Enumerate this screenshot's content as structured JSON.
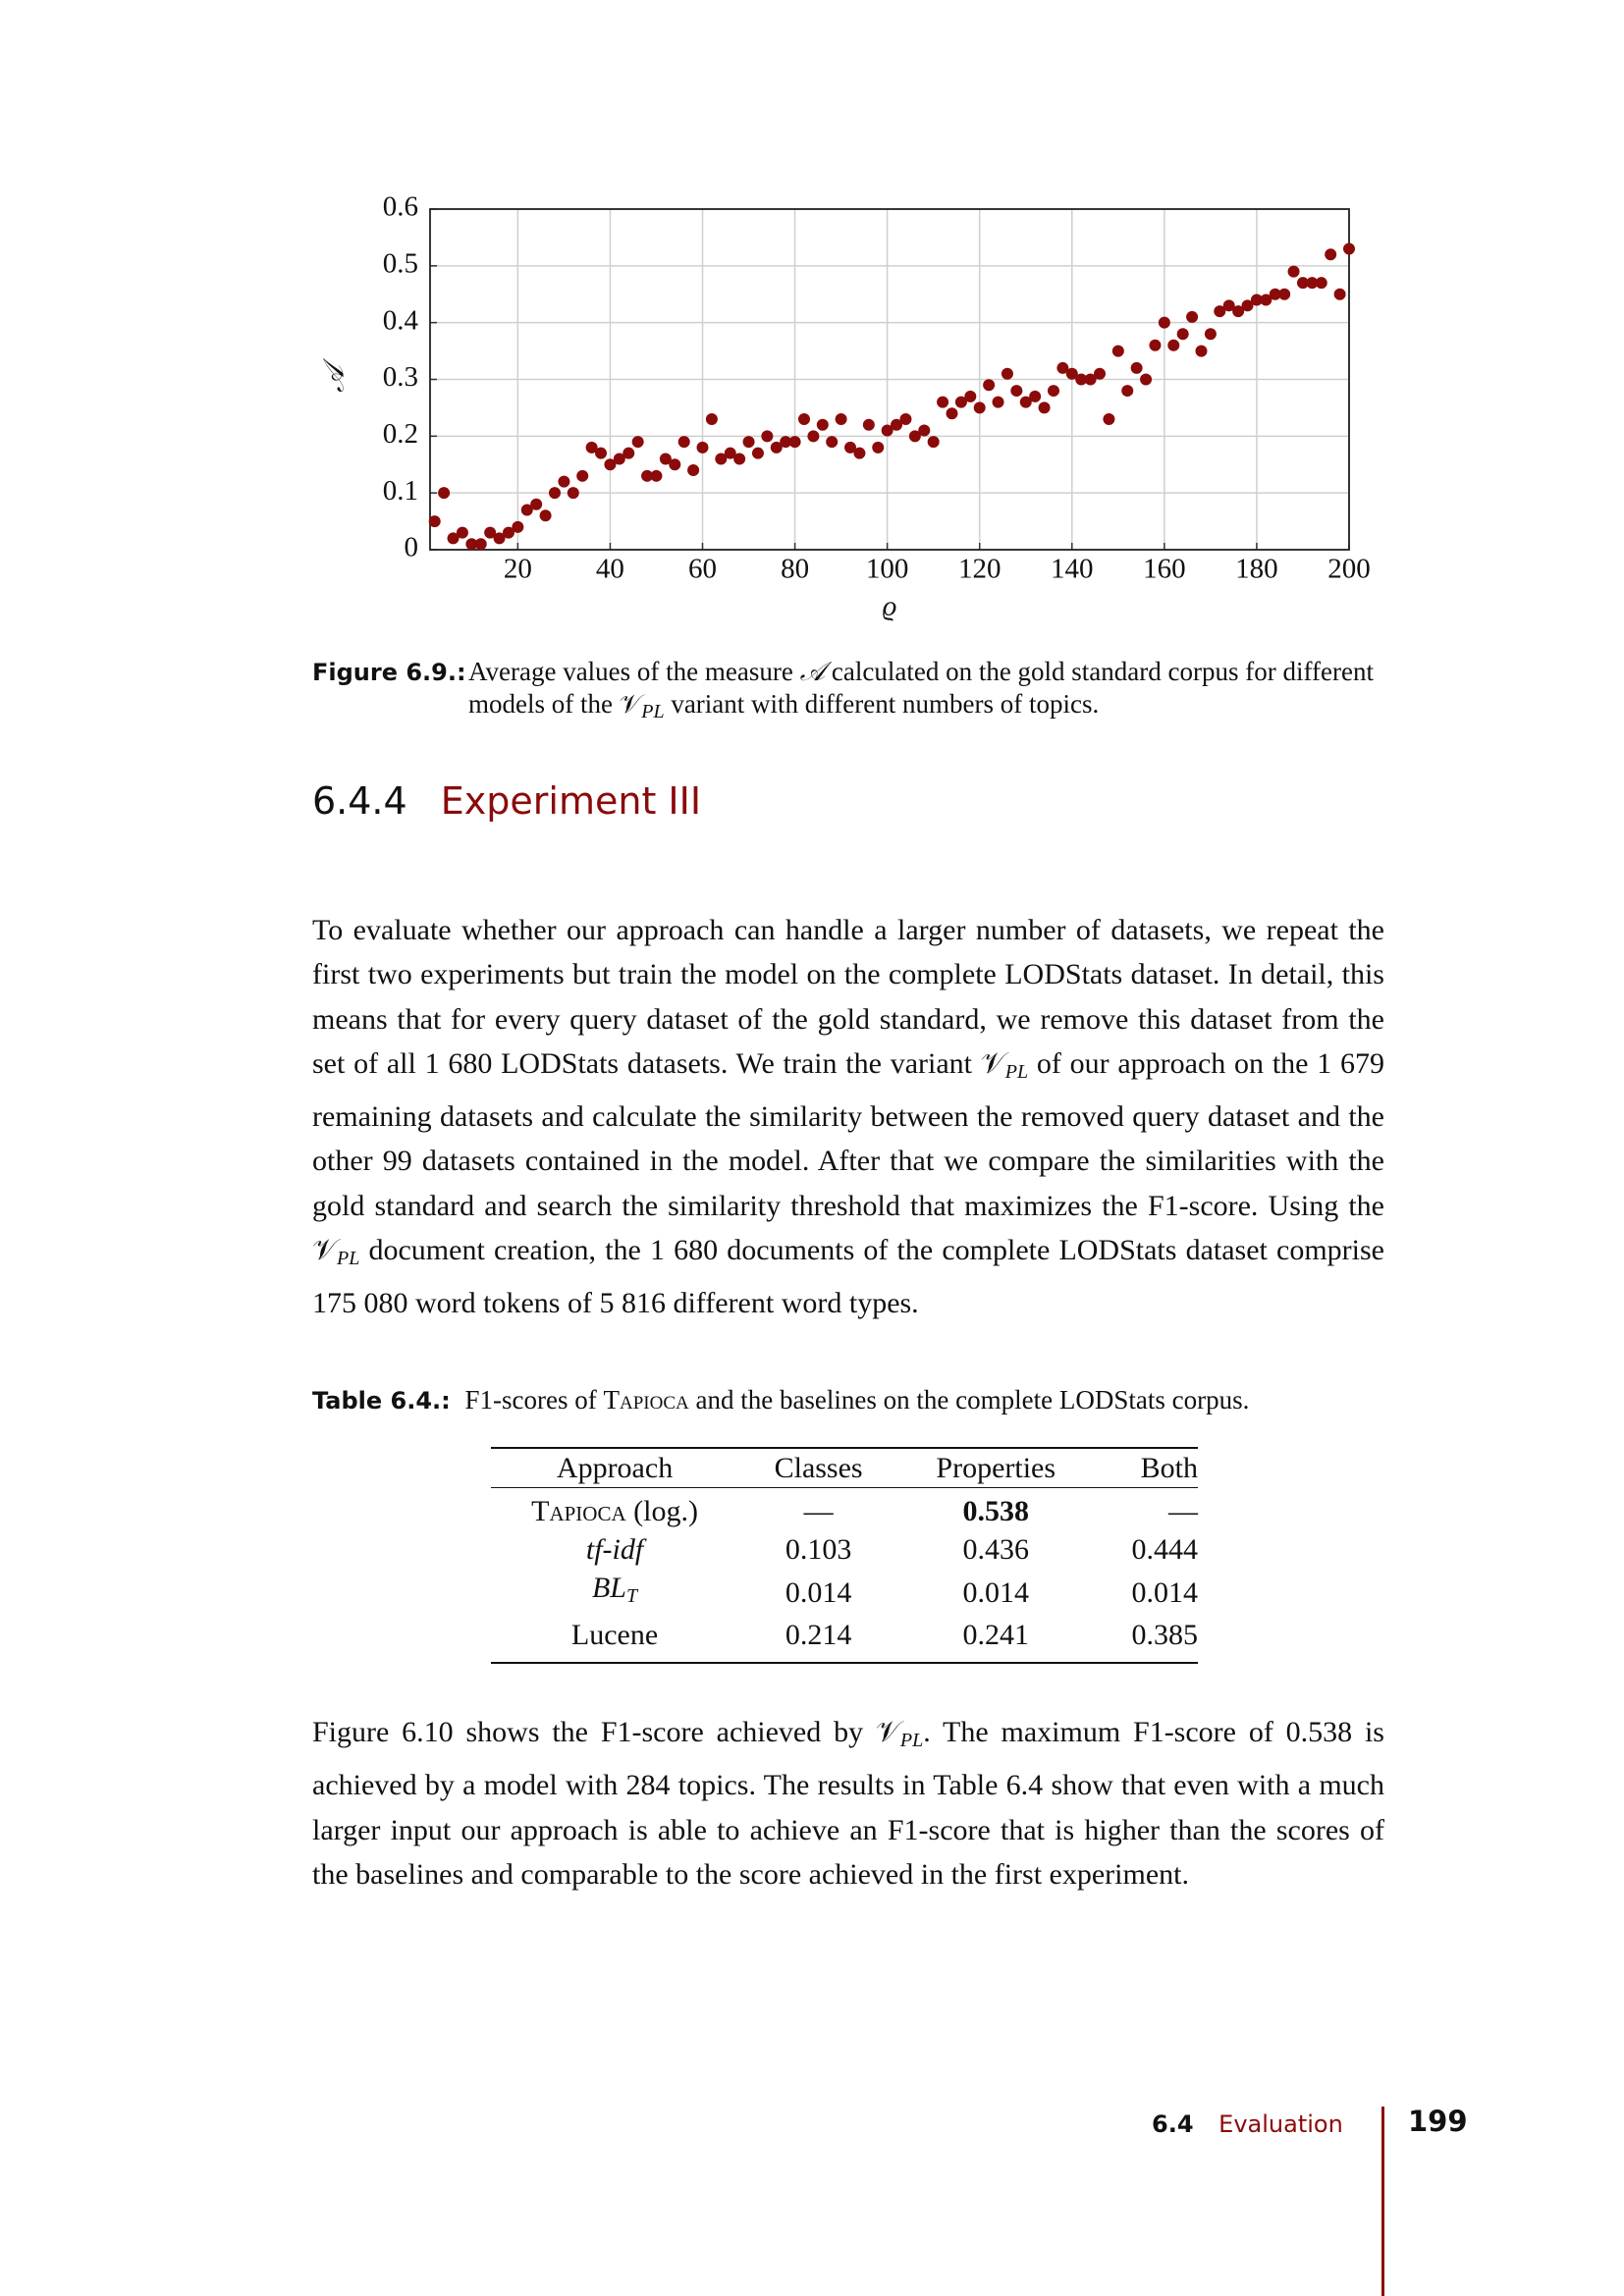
{
  "chart_data": {
    "type": "scatter",
    "xlabel": "ϱ",
    "ylabel": "𝒜",
    "x": [
      2,
      4,
      6,
      8,
      10,
      12,
      14,
      16,
      18,
      20,
      22,
      24,
      26,
      28,
      30,
      32,
      34,
      36,
      38,
      40,
      42,
      44,
      46,
      48,
      50,
      52,
      54,
      56,
      58,
      60,
      62,
      64,
      66,
      68,
      70,
      72,
      74,
      76,
      78,
      80,
      82,
      84,
      86,
      88,
      90,
      92,
      94,
      96,
      98,
      100,
      102,
      104,
      106,
      108,
      110,
      112,
      114,
      116,
      118,
      120,
      122,
      124,
      126,
      128,
      130,
      132,
      134,
      136,
      138,
      140,
      142,
      144,
      146,
      148,
      150,
      152,
      154,
      156,
      158,
      160,
      162,
      164,
      166,
      168,
      170,
      172,
      174,
      176,
      178,
      180,
      182,
      184,
      186,
      188,
      190,
      192,
      194,
      196,
      198,
      200
    ],
    "values": [
      0.05,
      0.1,
      0.02,
      0.03,
      0.01,
      0.01,
      0.03,
      0.02,
      0.03,
      0.04,
      0.07,
      0.08,
      0.06,
      0.1,
      0.12,
      0.1,
      0.13,
      0.18,
      0.17,
      0.15,
      0.16,
      0.17,
      0.19,
      0.13,
      0.13,
      0.16,
      0.15,
      0.19,
      0.14,
      0.18,
      0.23,
      0.16,
      0.17,
      0.16,
      0.19,
      0.17,
      0.2,
      0.18,
      0.19,
      0.19,
      0.23,
      0.2,
      0.22,
      0.19,
      0.23,
      0.18,
      0.17,
      0.22,
      0.18,
      0.21,
      0.22,
      0.23,
      0.2,
      0.21,
      0.19,
      0.26,
      0.24,
      0.26,
      0.27,
      0.25,
      0.29,
      0.26,
      0.31,
      0.28,
      0.26,
      0.27,
      0.25,
      0.28,
      0.32,
      0.31,
      0.3,
      0.3,
      0.31,
      0.23,
      0.35,
      0.28,
      0.32,
      0.3,
      0.36,
      0.4,
      0.36,
      0.38,
      0.41,
      0.35,
      0.38,
      0.42,
      0.43,
      0.42,
      0.43,
      0.44,
      0.44,
      0.45,
      0.45,
      0.49,
      0.47,
      0.47,
      0.47,
      0.52,
      0.45,
      0.53
    ],
    "color": "#8b0a0a",
    "xlim": [
      1,
      200
    ],
    "ylim": [
      0,
      0.6
    ],
    "xticks": [
      20,
      40,
      60,
      80,
      100,
      120,
      140,
      160,
      180,
      200
    ],
    "yticks": [
      0,
      0.1,
      0.2,
      0.3,
      0.4,
      0.5,
      0.6
    ],
    "grid": true
  },
  "figure_caption": {
    "label": "Figure 6.9.:",
    "segments": [
      "Average values of the measure ",
      "𝒜",
      " calculated on the gold standard corpus for different models of the ",
      "𝒱",
      "PL",
      " variant with different numbers of topics."
    ]
  },
  "section": {
    "number": "6.4.4",
    "title": "Experiment III"
  },
  "paragraphs": [
    [
      "To evaluate whether our approach can handle a larger number of datasets, we repeat the first two experiments but train the model on the complete LODStats dataset. In detail, this means that for every query dataset of the gold standard, we remove this dataset from the set of all 1 680 LODStats datasets. We train the variant ",
      "𝒱",
      "PL",
      " of our approach on the 1 679 remaining datasets and calculate the similarity between the removed query dataset and the other 99 datasets contained in the model. After that we compare the similarities with the gold standard and search the similarity threshold that maximizes the F1-score. Using the ",
      "𝒱",
      "PL",
      " document creation, the 1 680 documents of the complete LODStats dataset comprise 175 080 word tokens of 5 816 different word types."
    ],
    [
      "Figure 6.10 shows the F1-score achieved by ",
      "𝒱",
      "PL",
      ". The maximum F1-score of 0.538 is achieved by a model with 284 topics. The results in Table 6.4 show that even with a much larger input our approach is able to achieve an F1-score that is higher than the scores of the baselines and comparable to the score achieved in the first experiment."
    ]
  ],
  "table_caption": {
    "label": "Table 6.4.:",
    "segments": [
      "F1-scores of ",
      "Tapioca",
      " and the baselines on the complete LODStats corpus."
    ]
  },
  "table": {
    "header": [
      "Approach",
      "Classes",
      "Properties",
      "Both"
    ],
    "rows": [
      [
        [
          "Tapioca",
          " (log.)"
        ],
        "—",
        "0.538",
        "—"
      ],
      [
        "tf-idf",
        "0.103",
        "0.436",
        "0.444"
      ],
      [
        [
          "BL",
          "T"
        ],
        "0.014",
        "0.014",
        "0.014"
      ],
      [
        "Lucene",
        "0.214",
        "0.241",
        "0.385"
      ]
    ]
  },
  "footer": {
    "section": "6.4",
    "title": "Evaluation",
    "page": "199"
  }
}
